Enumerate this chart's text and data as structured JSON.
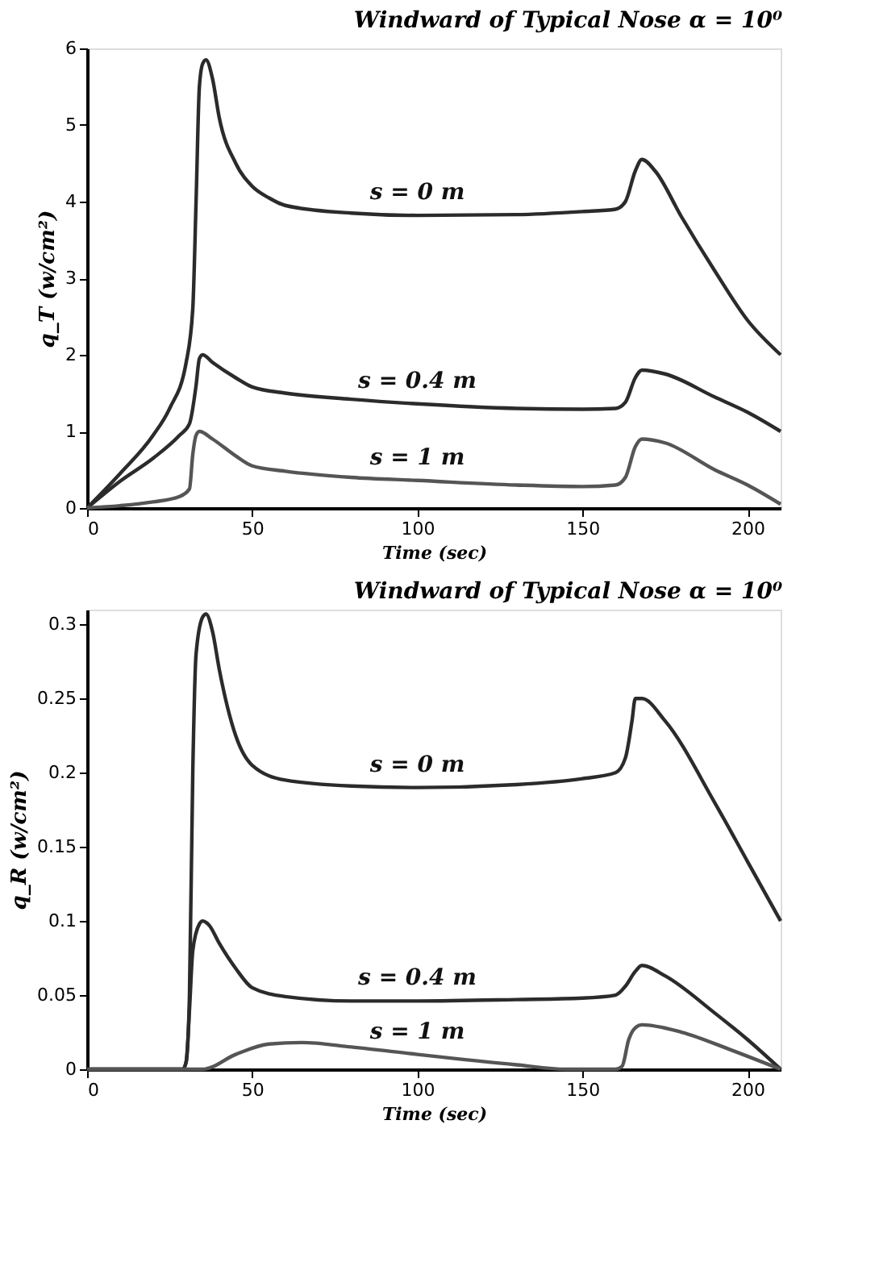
{
  "chart_data": [
    {
      "type": "line",
      "title": "Windward of Typical Nose α = 10⁰",
      "xlabel": "Time (sec)",
      "ylabel": "q_T (w/cm²)",
      "xlim": [
        0,
        210
      ],
      "xticks": [
        0,
        50,
        100,
        150,
        200
      ],
      "ylim": [
        0,
        6
      ],
      "yticks": [
        0,
        1,
        2,
        3,
        4,
        5,
        6
      ],
      "grid": false,
      "legend": false,
      "marker": "none",
      "line_style": "solid",
      "series": [
        {
          "name": "s = 0 m",
          "color": "#2b2b2b",
          "x": [
            0,
            10,
            20,
            25,
            30,
            32,
            33,
            34,
            35,
            36,
            38,
            40,
            45,
            50,
            55,
            60,
            80,
            100,
            130,
            150,
            160,
            163,
            166,
            168,
            172,
            180,
            190,
            200,
            210
          ],
          "values": [
            0,
            0.45,
            0.95,
            1.3,
            1.9,
            2.6,
            4,
            5.5,
            5.8,
            5.85,
            5.6,
            5.1,
            4.5,
            4.2,
            4.05,
            3.95,
            3.85,
            3.82,
            3.83,
            3.87,
            3.9,
            4.0,
            4.4,
            4.55,
            4.4,
            3.8,
            3.1,
            2.45,
            2.0
          ]
        },
        {
          "name": "s = 0.4 m",
          "color": "#2b2b2b",
          "x": [
            0,
            10,
            20,
            28,
            31,
            33,
            34,
            35,
            38,
            45,
            50,
            60,
            80,
            100,
            130,
            150,
            160,
            163,
            166,
            168,
            175,
            190,
            200,
            210
          ],
          "values": [
            0,
            0.35,
            0.65,
            0.95,
            1.1,
            1.6,
            1.95,
            2.0,
            1.9,
            1.7,
            1.58,
            1.5,
            1.42,
            1.36,
            1.3,
            1.29,
            1.3,
            1.38,
            1.7,
            1.8,
            1.75,
            1.45,
            1.25,
            1.0
          ]
        },
        {
          "name": "s = 1 m",
          "color": "#555555",
          "x": [
            0,
            10,
            20,
            28,
            31,
            32,
            33,
            34,
            38,
            45,
            50,
            60,
            80,
            100,
            130,
            150,
            160,
            163,
            166,
            168,
            175,
            190,
            200,
            210
          ],
          "values": [
            0,
            0.03,
            0.08,
            0.15,
            0.25,
            0.7,
            0.95,
            1.0,
            0.9,
            0.68,
            0.55,
            0.48,
            0.4,
            0.36,
            0.3,
            0.28,
            0.3,
            0.4,
            0.8,
            0.9,
            0.85,
            0.5,
            0.3,
            0.05
          ]
        }
      ]
    },
    {
      "type": "line",
      "title": "Windward of Typical Nose α = 10⁰",
      "xlabel": "Time (sec)",
      "ylabel": "q_R (w/cm²)",
      "xlim": [
        0,
        210
      ],
      "xticks": [
        0,
        50,
        100,
        150,
        200
      ],
      "ylim": [
        0,
        0.31
      ],
      "yticks": [
        0,
        0.05,
        0.1,
        0.15,
        0.2,
        0.25,
        0.3
      ],
      "grid": false,
      "legend": false,
      "marker": "none",
      "line_style": "solid",
      "series": [
        {
          "name": "s = 0 m",
          "color": "#2b2b2b",
          "x": [
            0,
            29,
            30,
            31,
            32,
            33,
            35,
            36,
            38,
            40,
            45,
            50,
            60,
            80,
            100,
            130,
            150,
            160,
            163,
            165,
            166,
            168,
            175,
            190,
            200,
            210
          ],
          "values": [
            0,
            0,
            0.005,
            0.05,
            0.2,
            0.28,
            0.305,
            0.307,
            0.295,
            0.27,
            0.225,
            0.205,
            0.195,
            0.191,
            0.19,
            0.192,
            0.196,
            0.2,
            0.21,
            0.235,
            0.25,
            0.25,
            0.235,
            0.18,
            0.14,
            0.1
          ]
        },
        {
          "name": "s = 0.4 m",
          "color": "#2b2b2b",
          "x": [
            0,
            29,
            30,
            31,
            32,
            34,
            35,
            37,
            40,
            45,
            50,
            60,
            80,
            100,
            130,
            150,
            160,
            163,
            166,
            168,
            175,
            190,
            200,
            210
          ],
          "values": [
            0,
            0,
            0.005,
            0.04,
            0.08,
            0.098,
            0.1,
            0.097,
            0.085,
            0.068,
            0.055,
            0.049,
            0.046,
            0.046,
            0.047,
            0.048,
            0.05,
            0.056,
            0.066,
            0.07,
            0.063,
            0.038,
            0.02,
            0
          ]
        },
        {
          "name": "s = 1 m",
          "color": "#555555",
          "x": [
            0,
            35,
            45,
            55,
            65,
            80,
            100,
            130,
            145,
            160,
            162,
            164,
            166,
            168,
            180,
            195,
            210
          ],
          "values": [
            0,
            0,
            0.01,
            0.017,
            0.018,
            0.015,
            0.01,
            0.003,
            0,
            0,
            0.002,
            0.02,
            0.028,
            0.03,
            0.025,
            0.013,
            0
          ]
        }
      ]
    }
  ]
}
